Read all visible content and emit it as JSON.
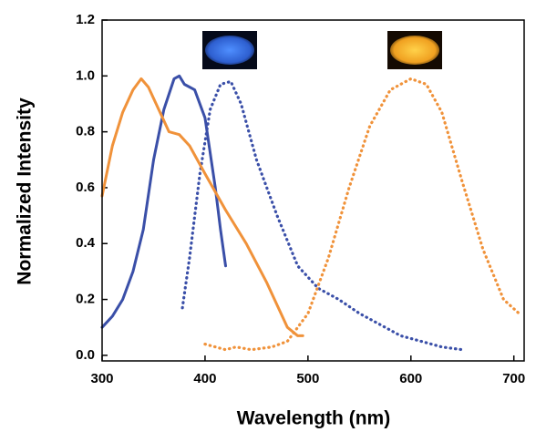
{
  "chart_data": {
    "type": "line",
    "xlabel": "Wavelength (nm)",
    "ylabel": "Normalized Intensity",
    "xlim": [
      300,
      710
    ],
    "ylim": [
      -0.02,
      1.2
    ],
    "xticks": [
      300,
      400,
      500,
      600,
      700
    ],
    "yticks": [
      {
        "value": 0,
        "label": "0.0"
      },
      0.2,
      0.4,
      0.6,
      0.8,
      {
        "value": 1,
        "label": "1.0"
      },
      1.2
    ],
    "series": [
      {
        "color": "#3a4fa8",
        "style": "solid",
        "x": [
          300,
          310,
          320,
          330,
          340,
          350,
          360,
          370,
          375,
          380,
          390,
          400,
          410,
          415,
          420
        ],
        "values": [
          0.1,
          0.14,
          0.2,
          0.3,
          0.45,
          0.7,
          0.88,
          0.99,
          1.0,
          0.97,
          0.95,
          0.85,
          0.6,
          0.45,
          0.32
        ]
      },
      {
        "color": "#3a4fa8",
        "style": "dotted",
        "x": [
          378,
          385,
          395,
          405,
          415,
          425,
          435,
          450,
          470,
          490,
          510,
          530,
          550,
          570,
          590,
          610,
          630,
          650
        ],
        "values": [
          0.17,
          0.35,
          0.65,
          0.88,
          0.97,
          0.98,
          0.9,
          0.7,
          0.5,
          0.32,
          0.24,
          0.2,
          0.15,
          0.11,
          0.07,
          0.05,
          0.03,
          0.02
        ]
      },
      {
        "color": "#f0923a",
        "style": "solid",
        "x": [
          300,
          310,
          320,
          330,
          338,
          345,
          355,
          365,
          375,
          385,
          400,
          420,
          440,
          460,
          470,
          480,
          490,
          495
        ],
        "values": [
          0.57,
          0.75,
          0.87,
          0.95,
          0.99,
          0.96,
          0.88,
          0.8,
          0.79,
          0.75,
          0.65,
          0.52,
          0.4,
          0.26,
          0.18,
          0.1,
          0.07,
          0.07
        ]
      },
      {
        "color": "#f0923a",
        "style": "dotted",
        "x": [
          400,
          420,
          430,
          445,
          465,
          480,
          500,
          520,
          540,
          560,
          580,
          600,
          615,
          630,
          650,
          670,
          690,
          705
        ],
        "values": [
          0.04,
          0.02,
          0.03,
          0.02,
          0.03,
          0.05,
          0.15,
          0.35,
          0.6,
          0.82,
          0.95,
          0.99,
          0.97,
          0.87,
          0.62,
          0.38,
          0.2,
          0.15
        ]
      }
    ]
  }
}
